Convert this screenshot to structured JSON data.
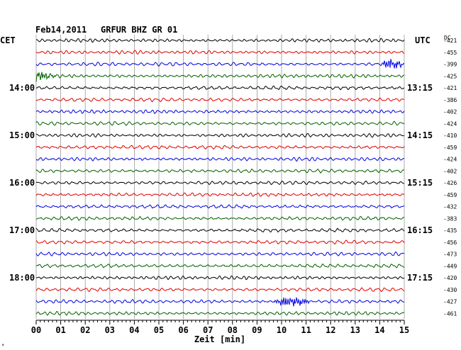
{
  "header": {
    "date": "Feb14,2011",
    "station": "GRFUR BHZ GR 01",
    "left_zone": "CET",
    "right_zone": "UTC",
    "dc_label": "DC"
  },
  "xaxis": {
    "label": "Zeit [min]",
    "ticks": [
      "00",
      "01",
      "02",
      "03",
      "04",
      "05",
      "06",
      "07",
      "08",
      "09",
      "10",
      "11",
      "12",
      "13",
      "14",
      "15"
    ]
  },
  "hour_labels": {
    "left": [
      "14:00",
      "15:00",
      "16:00",
      "17:00",
      "18:00"
    ],
    "right": [
      "13:15",
      "14:15",
      "15:15",
      "16:15",
      "17:15"
    ]
  },
  "corner_mark": "*",
  "colors": [
    "#000000",
    "#e00000",
    "#0000e0",
    "#006000"
  ],
  "chart_data": {
    "type": "line",
    "title": "Feb14,2011   GRFUR BHZ GR 01",
    "xlabel": "Zeit [min]",
    "xlim": [
      0,
      15
    ],
    "traces_per_hour": 4,
    "dc_offsets": [
      -421,
      -455,
      -399,
      -425,
      -421,
      -386,
      -402,
      -424,
      -410,
      -459,
      -424,
      -402,
      -426,
      -459,
      -432,
      -383,
      -435,
      -456,
      -473,
      -449,
      -420,
      -430,
      -427,
      -461
    ],
    "events": [
      {
        "trace": 2,
        "start_min": 14.0,
        "end_min": 15.0,
        "description": "high amplitude burst"
      },
      {
        "trace": 3,
        "start_min": 0.0,
        "end_min": 1.6,
        "description": "decaying high amplitude signal"
      },
      {
        "trace": 22,
        "start_min": 9.6,
        "end_min": 11.2,
        "description": "moderate burst"
      }
    ]
  }
}
